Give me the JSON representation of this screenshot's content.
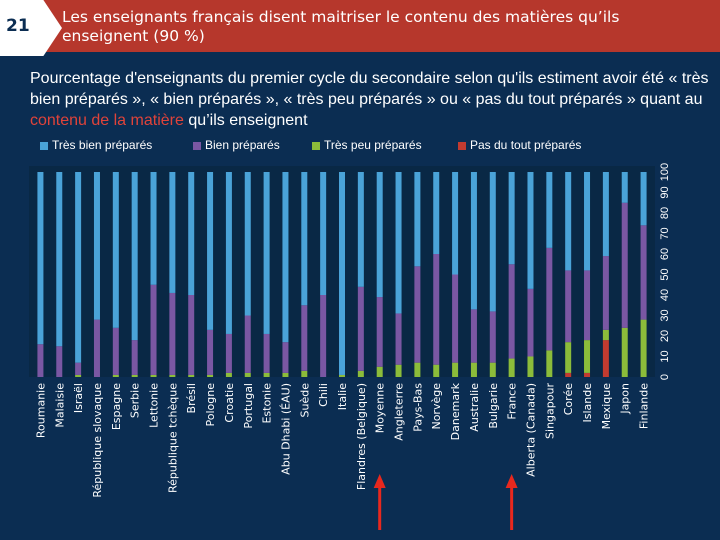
{
  "slide": {
    "number": "21",
    "title": "Les enseignants français disent maitriser le contenu des matières qu’ils enseignent (90 %)"
  },
  "subtitle": {
    "before": "Pourcentage d'enseignants du premier cycle du secondaire selon qu'ils estiment avoir été « très bien préparés », « bien préparés », « très peu préparés » ou « pas du tout préparés » quant au ",
    "highlight": "contenu de la matière",
    "after": " qu’ils enseignent"
  },
  "colors": {
    "header_bg": "#b6372c",
    "background": "#0b2d52",
    "very_well": "#4aa3d8",
    "well": "#7a57a3",
    "very_little": "#8cbc3a",
    "not_at_all": "#c23b30",
    "arrow": "#e8281e",
    "text": "#ffffff"
  },
  "chart_data": {
    "type": "bar",
    "stacked": true,
    "orientation": "vertical",
    "yaxis_position": "right",
    "ylim": [
      0,
      100
    ],
    "yticks": [
      0,
      10,
      20,
      30,
      40,
      50,
      60,
      70,
      80,
      90,
      100
    ],
    "grid": false,
    "legend_position": "top",
    "categories": [
      "Roumanie",
      "Malaisie",
      "Israël",
      "République slovaque",
      "Espagne",
      "Serbie",
      "Lettonie",
      "République tchèque",
      "Brésil",
      "Pologne",
      "Croatie",
      "Portugal",
      "Estonie",
      "Abu Dhabi (ÉAU)",
      "Suède",
      "Chili",
      "Italie",
      "Flandres (Belgique)",
      "Moyenne",
      "Angleterre",
      "Pays-Bas",
      "Norvège",
      "Danemark",
      "Australie",
      "Bulgarie",
      "France",
      "Alberta (Canada)",
      "Singapour",
      "Corée",
      "Islande",
      "Mexique",
      "Japon",
      "Finlande"
    ],
    "series": [
      {
        "name": "Pas du tout préparés",
        "values": [
          0,
          0,
          0,
          0,
          0,
          0,
          0,
          0,
          0,
          0,
          0,
          0,
          0,
          0,
          0,
          0,
          0,
          0,
          0,
          0,
          0,
          0,
          0,
          0,
          0,
          0,
          0,
          0,
          2,
          2,
          18,
          0,
          0
        ]
      },
      {
        "name": "Très peu préparés",
        "values": [
          0,
          0,
          1,
          0,
          1,
          1,
          1,
          1,
          1,
          1,
          2,
          2,
          2,
          2,
          3,
          0,
          1,
          3,
          5,
          6,
          7,
          6,
          7,
          7,
          7,
          9,
          10,
          13,
          15,
          16,
          5,
          24,
          28
        ]
      },
      {
        "name": "Bien préparés",
        "values": [
          16,
          15,
          6,
          28,
          23,
          17,
          44,
          40,
          39,
          22,
          19,
          28,
          19,
          15,
          32,
          40,
          0,
          41,
          34,
          25,
          47,
          54,
          43,
          26,
          25,
          46,
          33,
          50,
          35,
          34,
          36,
          61,
          46
        ]
      },
      {
        "name": "Très bien préparés",
        "values": [
          84,
          85,
          93,
          72,
          76,
          82,
          55,
          59,
          60,
          77,
          79,
          70,
          79,
          83,
          65,
          60,
          99,
          56,
          61,
          69,
          46,
          40,
          50,
          67,
          68,
          45,
          57,
          37,
          48,
          48,
          41,
          15,
          26
        ]
      }
    ],
    "highlighted_categories": [
      "Moyenne",
      "France"
    ]
  }
}
